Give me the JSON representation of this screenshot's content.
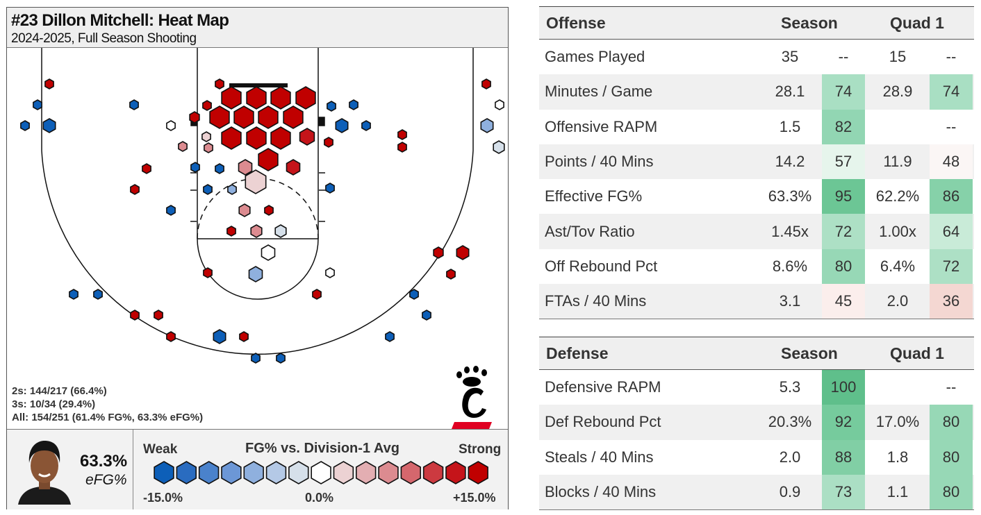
{
  "heatmap": {
    "title": "#23 Dillon Mitchell: Heat Map",
    "subtitle": "2024-2025, Full Season Shooting",
    "stats": {
      "twos": "2s: 144/217 (66.4%)",
      "threes": "3s: 10/34 (29.4%)",
      "all": "All: 154/251 (61.4% FG%, 63.3% eFG%)"
    },
    "efg_value": "63.3%",
    "efg_label": "eFG%",
    "legend": {
      "weak": "Weak",
      "title": "FG% vs. Division-1 Avg",
      "strong": "Strong",
      "min": "-15.0%",
      "mid": "0.0%",
      "max": "+15.0%",
      "colors": [
        "#0d5fb8",
        "#2a6cc0",
        "#4a82cc",
        "#6c97d6",
        "#8fb0de",
        "#b4c9e6",
        "#d6e0ea",
        "#ffffff",
        "#ecd2d3",
        "#e3aeb2",
        "#dc8b90",
        "#d5676d",
        "#cc3a40",
        "#c5141a",
        "#c00000"
      ]
    },
    "logo": {
      "primary": "#000000",
      "accent": "#e00122"
    }
  },
  "chart_data": {
    "type": "heatmap",
    "note_scale": "hex color = FG% vs. Division-1 Avg, from -15.0% (blue) to +15.0% (red); hex size = shot volume",
    "hexes": [
      {
        "zone": "rim",
        "diff": 12,
        "size": "large"
      },
      {
        "zone": "paint",
        "diff": 9,
        "size": "large"
      },
      {
        "zone": "short-midrange",
        "diff": 3,
        "size": "medium"
      },
      {
        "zone": "free-throw",
        "diff": 0,
        "size": "small"
      },
      {
        "zone": "corner-3",
        "diff": -11,
        "size": "small"
      },
      {
        "zone": "wing-3",
        "diff": -13,
        "size": "small"
      },
      {
        "zone": "top-3",
        "diff": -12,
        "size": "small"
      }
    ]
  },
  "tables": [
    {
      "section": "Offense",
      "col_season": "Season",
      "col_quad": "Quad 1",
      "rows": [
        {
          "name": "Games Played",
          "s_val": "35",
          "s_pct": "--",
          "s_color": "",
          "q_val": "15",
          "q_pct": "--",
          "q_color": ""
        },
        {
          "name": "Minutes / Game",
          "s_val": "28.1",
          "s_pct": "74",
          "s_color": "#a9dfc3",
          "q_val": "28.9",
          "q_pct": "74",
          "q_color": "#a9dfc3"
        },
        {
          "name": "Offensive RAPM",
          "s_val": "1.5",
          "s_pct": "82",
          "s_color": "#92d6b3",
          "q_val": "",
          "q_pct": "--",
          "q_color": ""
        },
        {
          "name": "Points / 40 Mins",
          "s_val": "14.2",
          "s_pct": "57",
          "s_color": "#e6f5ec",
          "q_val": "11.9",
          "q_pct": "48",
          "q_color": "#fbf6f5"
        },
        {
          "name": "Effective FG%",
          "s_val": "63.3%",
          "s_pct": "95",
          "s_color": "#6cc695",
          "q_val": "62.2%",
          "q_pct": "86",
          "q_color": "#86d1a9"
        },
        {
          "name": "Ast/Tov Ratio",
          "s_val": "1.45x",
          "s_pct": "72",
          "s_color": "#ade0c5",
          "q_val": "1.00x",
          "q_pct": "64",
          "q_color": "#c9ebd8"
        },
        {
          "name": "Off Rebound Pct",
          "s_val": "8.6%",
          "s_pct": "80",
          "s_color": "#97d8b6",
          "q_val": "6.4%",
          "q_pct": "72",
          "q_color": "#ade0c5"
        },
        {
          "name": "FTAs / 40 Mins",
          "s_val": "3.1",
          "s_pct": "45",
          "s_color": "#fbeeec",
          "q_val": "2.0",
          "q_pct": "36",
          "q_color": "#f4d7d2"
        }
      ]
    },
    {
      "section": "Defense",
      "col_season": "Season",
      "col_quad": "Quad 1",
      "rows": [
        {
          "name": "Defensive RAPM",
          "s_val": "5.3",
          "s_pct": "100",
          "s_color": "#5fbf8b",
          "q_val": "",
          "q_pct": "--",
          "q_color": ""
        },
        {
          "name": "Def Rebound Pct",
          "s_val": "20.3%",
          "s_pct": "92",
          "s_color": "#76cb9d",
          "q_val": "17.0%",
          "q_pct": "80",
          "q_color": "#97d8b6"
        },
        {
          "name": "Steals / 40 Mins",
          "s_val": "2.0",
          "s_pct": "88",
          "s_color": "#81cfa5",
          "q_val": "1.8",
          "q_pct": "80",
          "q_color": "#97d8b6"
        },
        {
          "name": "Blocks / 40 Mins",
          "s_val": "0.9",
          "s_pct": "73",
          "s_color": "#abdfc4",
          "q_val": "1.1",
          "q_pct": "80",
          "q_color": "#97d8b6"
        }
      ]
    }
  ]
}
